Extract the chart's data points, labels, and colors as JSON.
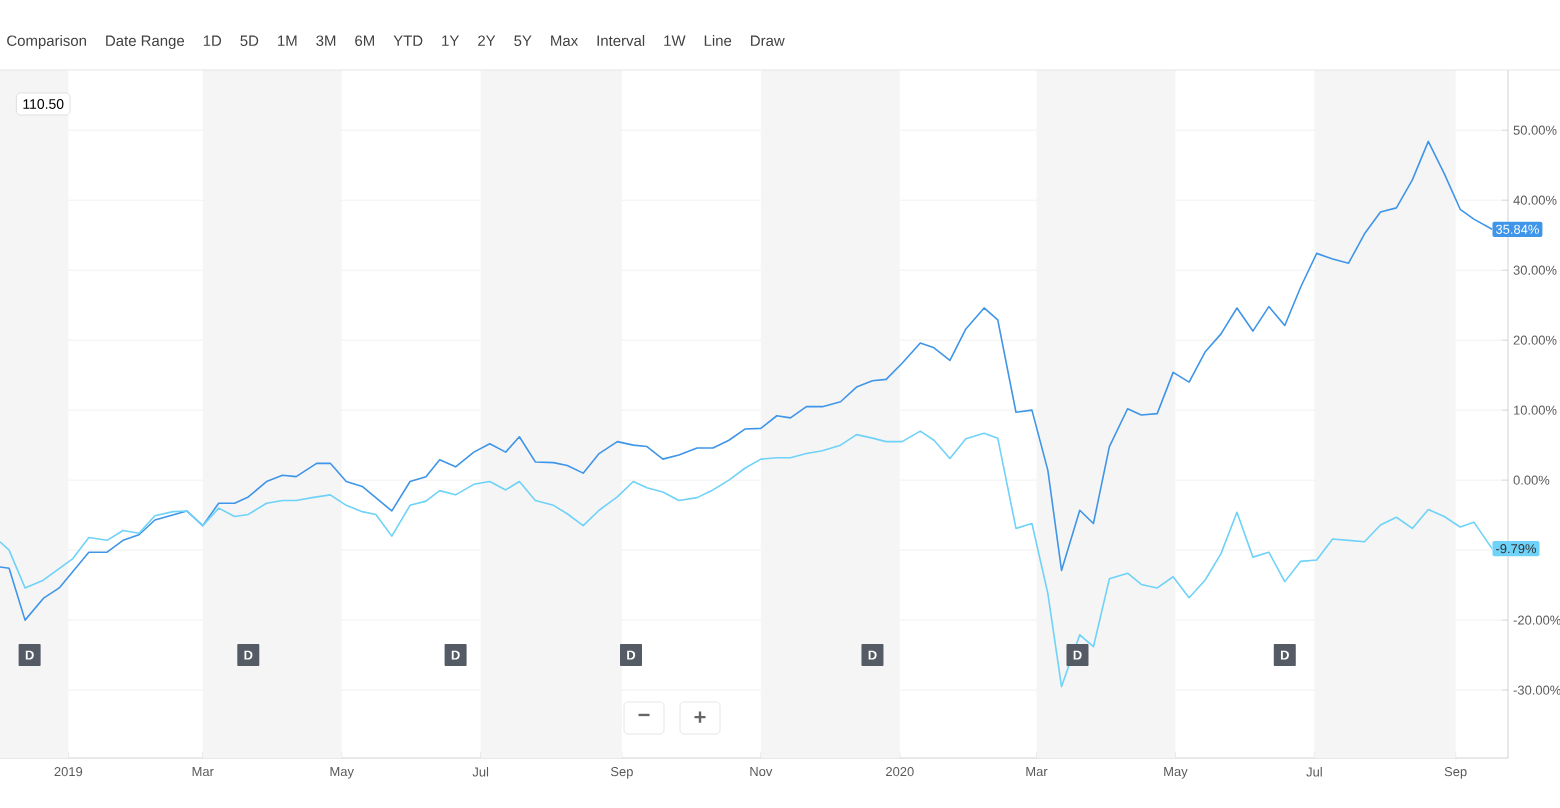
{
  "chart_data": {
    "type": "line",
    "xlim": [
      "2018-12-02",
      "2020-09-24"
    ],
    "ylim": [
      -39.7,
      58.6
    ],
    "xticks": [
      {
        "value": "2019-01-01",
        "label": "2019"
      },
      {
        "value": "2019-03-01",
        "label": "Mar"
      },
      {
        "value": "2019-05-01",
        "label": "May"
      },
      {
        "value": "2019-07-01",
        "label": "Jul"
      },
      {
        "value": "2019-09-01",
        "label": "Sep"
      },
      {
        "value": "2019-11-01",
        "label": "Nov"
      },
      {
        "value": "2020-01-01",
        "label": "2020"
      },
      {
        "value": "2020-03-01",
        "label": "Mar"
      },
      {
        "value": "2020-05-01",
        "label": "May"
      },
      {
        "value": "2020-07-01",
        "label": "Jul"
      },
      {
        "value": "2020-09-01",
        "label": "Sep"
      }
    ],
    "yticks": [
      {
        "value": 50,
        "label": "50.00%"
      },
      {
        "value": 40,
        "label": "40.00%"
      },
      {
        "value": 30,
        "label": "30.00%"
      },
      {
        "value": 20,
        "label": "20.00%"
      },
      {
        "value": 10,
        "label": "10.00%"
      },
      {
        "value": 0,
        "label": "0.00%"
      },
      {
        "value": -10,
        "label": null
      },
      {
        "value": -20,
        "label": "-20.00%"
      },
      {
        "value": -30,
        "label": "-30.00%"
      }
    ],
    "grid": "y",
    "bands": [
      {
        "axis": "x",
        "from": "2018-12-02",
        "to": "2019-01-01",
        "color": "#f5f5f5"
      },
      {
        "axis": "x",
        "from": "2019-03-01",
        "to": "2019-05-01",
        "color": "#f5f5f5"
      },
      {
        "axis": "x",
        "from": "2019-07-01",
        "to": "2019-09-01",
        "color": "#f5f5f5"
      },
      {
        "axis": "x",
        "from": "2019-11-01",
        "to": "2020-01-01",
        "color": "#f5f5f5"
      },
      {
        "axis": "x",
        "from": "2020-03-01",
        "to": "2020-05-01",
        "color": "#f5f5f5"
      },
      {
        "axis": "x",
        "from": "2020-07-01",
        "to": "2020-09-01",
        "color": "#f5f5f5"
      }
    ],
    "series": [
      {
        "color": "#3f95e8",
        "x": [
          "2018-12-02",
          "2018-12-06",
          "2018-12-13",
          "2018-12-21",
          "2018-12-28",
          "2019-01-10",
          "2019-01-18",
          "2019-01-25",
          "2019-02-01",
          "2019-02-08",
          "2019-02-22",
          "2019-03-01",
          "2019-03-08",
          "2019-03-15",
          "2019-03-21",
          "2019-03-29",
          "2019-04-05",
          "2019-04-11",
          "2019-04-20",
          "2019-04-26",
          "2019-05-03",
          "2019-05-10",
          "2019-05-23",
          "2019-05-31",
          "2019-06-07",
          "2019-06-13",
          "2019-06-20",
          "2019-06-28",
          "2019-07-05",
          "2019-07-12",
          "2019-07-18",
          "2019-07-25",
          "2019-08-02",
          "2019-08-08",
          "2019-08-15",
          "2019-08-22",
          "2019-08-30",
          "2019-09-06",
          "2019-09-12",
          "2019-09-19",
          "2019-09-26",
          "2019-10-04",
          "2019-10-11",
          "2019-10-18",
          "2019-10-25",
          "2019-11-01",
          "2019-11-08",
          "2019-11-14",
          "2019-11-21",
          "2019-11-28",
          "2019-12-06",
          "2019-12-13",
          "2019-12-20",
          "2019-12-26",
          "2020-01-02",
          "2020-01-10",
          "2020-01-16",
          "2020-01-23",
          "2020-01-30",
          "2020-02-07",
          "2020-02-13",
          "2020-02-21",
          "2020-02-28",
          "2020-03-06",
          "2020-03-12",
          "2020-03-20",
          "2020-03-26",
          "2020-04-02",
          "2020-04-10",
          "2020-04-16",
          "2020-04-23",
          "2020-04-30",
          "2020-05-07",
          "2020-05-14",
          "2020-05-21",
          "2020-05-28",
          "2020-06-04",
          "2020-06-11",
          "2020-06-18",
          "2020-06-25",
          "2020-07-02",
          "2020-07-09",
          "2020-07-16",
          "2020-07-23",
          "2020-07-30",
          "2020-08-06",
          "2020-08-13",
          "2020-08-20",
          "2020-08-27",
          "2020-09-03",
          "2020-09-09",
          "2020-09-17"
        ],
        "values": [
          -12.4,
          -12.6,
          -20,
          -16.9,
          -15.4,
          -10.3,
          -10.3,
          -8.6,
          -7.8,
          -5.7,
          -4.4,
          -6.5,
          -3.3,
          -3.3,
          -2.4,
          -0.2,
          0.7,
          0.5,
          2.4,
          2.4,
          -0.2,
          -0.9,
          -4.4,
          -0.2,
          0.5,
          2.9,
          1.9,
          4.0,
          5.2,
          4.0,
          6.2,
          2.6,
          2.5,
          2.1,
          1.0,
          3.8,
          5.5,
          5.0,
          4.8,
          3.0,
          3.6,
          4.6,
          4.6,
          5.7,
          7.3,
          7.4,
          9.2,
          8.9,
          10.5,
          10.5,
          11.2,
          13.3,
          14.2,
          14.4,
          16.7,
          19.6,
          18.9,
          17.1,
          21.6,
          24.6,
          22.9,
          9.7,
          10.0,
          1.4,
          -12.9,
          -4.3,
          -6.2,
          4.8,
          10.2,
          9.3,
          9.5,
          15.4,
          14.0,
          18.3,
          20.9,
          24.6,
          21.3,
          24.8,
          22.1,
          27.6,
          32.4,
          31.6,
          31.0,
          35.2,
          38.3,
          38.9,
          42.9,
          48.4,
          43.8,
          38.7,
          37.3,
          35.84
        ],
        "value_labels": [
          null,
          null,
          null,
          null,
          null,
          null,
          null,
          null,
          null,
          null,
          null,
          null,
          null,
          null,
          null,
          null,
          null,
          null,
          null,
          null,
          null,
          null,
          null,
          null,
          null,
          null,
          null,
          null,
          null,
          null,
          null,
          null,
          null,
          null,
          null,
          null,
          null,
          null,
          null,
          null,
          null,
          null,
          null,
          null,
          null,
          null,
          null,
          null,
          null,
          null,
          null,
          null,
          null,
          null,
          null,
          null,
          null,
          null,
          null,
          null,
          null,
          null,
          null,
          null,
          null,
          null,
          null,
          null,
          null,
          null,
          null,
          null,
          null,
          null,
          null,
          null,
          null,
          null,
          null,
          null,
          null,
          null,
          null,
          null,
          null,
          null,
          null,
          null,
          null,
          null,
          null,
          "35.84%"
        ]
      },
      {
        "color": "#6fd2f8",
        "x": [
          "2018-12-02",
          "2018-12-06",
          "2018-12-13",
          "2018-12-21",
          "2019-01-03",
          "2019-01-10",
          "2019-01-18",
          "2019-01-25",
          "2019-02-01",
          "2019-02-08",
          "2019-02-16",
          "2019-02-22",
          "2019-03-01",
          "2019-03-08",
          "2019-03-15",
          "2019-03-21",
          "2019-03-29",
          "2019-04-05",
          "2019-04-11",
          "2019-04-18",
          "2019-04-26",
          "2019-05-03",
          "2019-05-10",
          "2019-05-16",
          "2019-05-23",
          "2019-05-31",
          "2019-06-07",
          "2019-06-13",
          "2019-06-20",
          "2019-06-28",
          "2019-07-05",
          "2019-07-12",
          "2019-07-18",
          "2019-07-25",
          "2019-08-02",
          "2019-08-08",
          "2019-08-15",
          "2019-08-22",
          "2019-08-30",
          "2019-09-06",
          "2019-09-12",
          "2019-09-19",
          "2019-09-26",
          "2019-10-04",
          "2019-10-11",
          "2019-10-18",
          "2019-10-25",
          "2019-11-01",
          "2019-11-08",
          "2019-11-14",
          "2019-11-21",
          "2019-11-28",
          "2019-12-06",
          "2019-12-13",
          "2019-12-20",
          "2019-12-26",
          "2020-01-02",
          "2020-01-10",
          "2020-01-16",
          "2020-01-23",
          "2020-01-30",
          "2020-02-07",
          "2020-02-13",
          "2020-02-21",
          "2020-02-28",
          "2020-03-06",
          "2020-03-12",
          "2020-03-20",
          "2020-03-26",
          "2020-04-02",
          "2020-04-10",
          "2020-04-16",
          "2020-04-23",
          "2020-04-30",
          "2020-05-07",
          "2020-05-14",
          "2020-05-21",
          "2020-05-28",
          "2020-06-04",
          "2020-06-11",
          "2020-06-18",
          "2020-06-25",
          "2020-07-02",
          "2020-07-09",
          "2020-07-16",
          "2020-07-23",
          "2020-07-30",
          "2020-08-06",
          "2020-08-13",
          "2020-08-20",
          "2020-08-27",
          "2020-09-03",
          "2020-09-09",
          "2020-09-17"
        ],
        "values": [
          -8.8,
          -10,
          -15.4,
          -14.3,
          -11.2,
          -8.2,
          -8.6,
          -7.2,
          -7.6,
          -5.1,
          -4.5,
          -4.4,
          -6.5,
          -4.0,
          -5.2,
          -4.9,
          -3.3,
          -2.9,
          -2.9,
          -2.5,
          -2.1,
          -3.6,
          -4.5,
          -4.9,
          -8.0,
          -3.6,
          -3.0,
          -1.5,
          -2.1,
          -0.6,
          -0.2,
          -1.4,
          -0.2,
          -2.9,
          -3.6,
          -4.8,
          -6.5,
          -4.3,
          -2.4,
          -0.2,
          -1.1,
          -1.7,
          -2.9,
          -2.5,
          -1.4,
          0,
          1.7,
          3.0,
          3.2,
          3.2,
          3.8,
          4.2,
          5.0,
          6.5,
          6.0,
          5.5,
          5.5,
          7.0,
          5.7,
          3.1,
          5.9,
          6.7,
          6.0,
          -6.9,
          -6.2,
          -16.2,
          -29.5,
          -22.1,
          -23.8,
          -14.1,
          -13.3,
          -14.9,
          -15.4,
          -13.8,
          -16.8,
          -14.3,
          -10.5,
          -4.6,
          -11.0,
          -10.3,
          -14.5,
          -11.6,
          -11.4,
          -8.4,
          -8.6,
          -8.8,
          -6.4,
          -5.3,
          -6.9,
          -4.2,
          -5.2,
          -6.7,
          -6.0,
          -9.79
        ],
        "value_labels": [
          null,
          null,
          null,
          null,
          null,
          null,
          null,
          null,
          null,
          null,
          null,
          null,
          null,
          null,
          null,
          null,
          null,
          null,
          null,
          null,
          null,
          null,
          null,
          null,
          null,
          null,
          null,
          null,
          null,
          null,
          null,
          null,
          null,
          null,
          null,
          null,
          null,
          null,
          null,
          null,
          null,
          null,
          null,
          null,
          null,
          null,
          null,
          null,
          null,
          null,
          null,
          null,
          null,
          null,
          null,
          null,
          null,
          null,
          null,
          null,
          null,
          null,
          null,
          null,
          null,
          null,
          null,
          null,
          null,
          null,
          null,
          null,
          null,
          null,
          null,
          null,
          null,
          null,
          null,
          null,
          null,
          null,
          null,
          null,
          null,
          null,
          null,
          null,
          null,
          null,
          null,
          null,
          null,
          "-9.79%"
        ]
      }
    ],
    "annotations": [
      "Comparison",
      "Date Range",
      "1D",
      "5D",
      "1M",
      "3M",
      "6M",
      "YTD",
      "1Y",
      "2Y",
      "5Y",
      "Max",
      "Interval",
      "1W",
      "Line",
      "Draw",
      "110.50",
      "−",
      "+",
      {
        "text": "D",
        "x": "2018-12-15",
        "y": -25
      },
      {
        "text": "D",
        "x": "2019-03-21",
        "y": -25
      },
      {
        "text": "D",
        "x": "2019-06-20",
        "y": -25
      },
      {
        "text": "D",
        "x": "2019-09-05",
        "y": -25
      },
      {
        "text": "D",
        "x": "2019-12-20",
        "y": -25
      },
      {
        "text": "D",
        "x": "2020-03-19",
        "y": -25
      },
      {
        "text": "D",
        "x": "2020-06-18",
        "y": -25
      }
    ]
  }
}
